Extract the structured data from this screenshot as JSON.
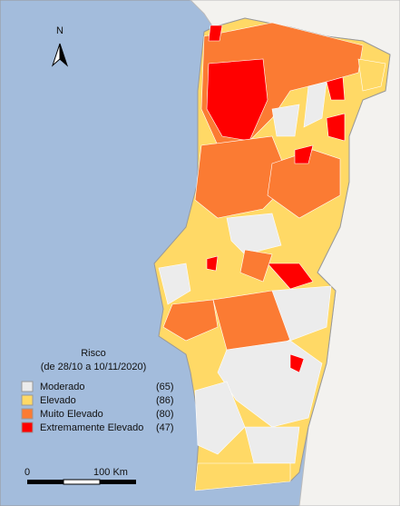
{
  "north": "N",
  "legend": {
    "title": "Risco",
    "subtitle": "(de 28/10 a 10/11/2020)",
    "items": [
      {
        "label": "Moderado",
        "count": "(65)",
        "color": "#ececec"
      },
      {
        "label": "Elevado",
        "count": "(86)",
        "color": "#ffd966"
      },
      {
        "label": "Muito Elevado",
        "count": "(80)",
        "color": "#fb7b33"
      },
      {
        "label": "Extremamente Elevado",
        "count": "(47)",
        "color": "#ff0000"
      }
    ]
  },
  "scale": {
    "start": "0",
    "end": "100 Km"
  }
}
